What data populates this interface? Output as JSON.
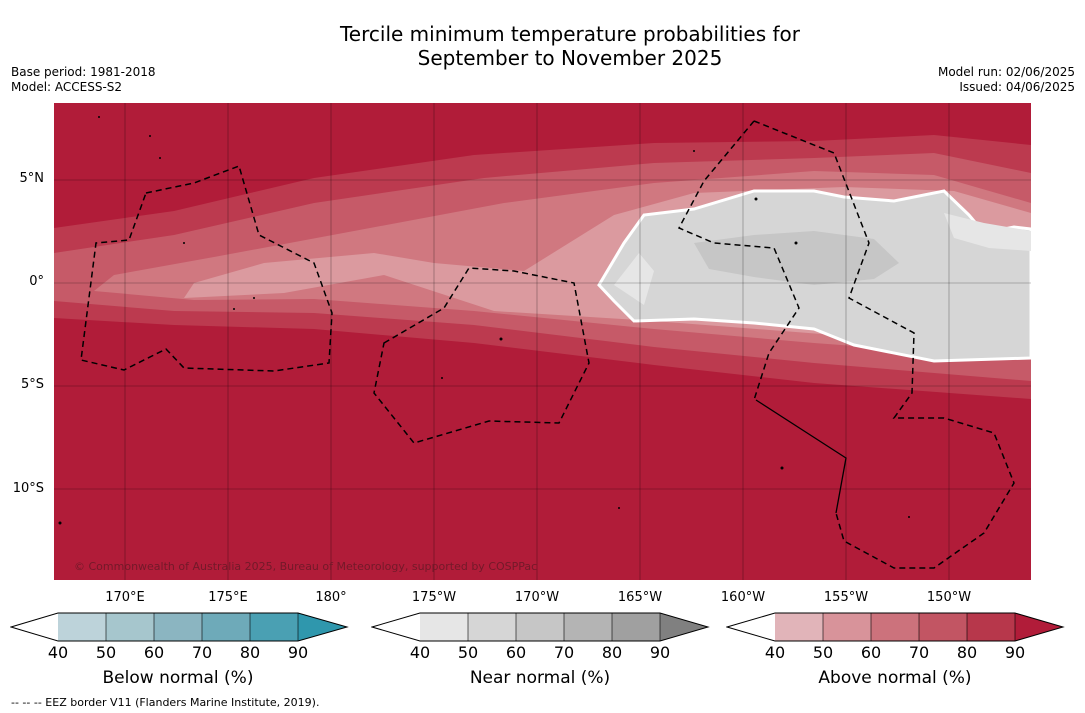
{
  "title": {
    "line1": "Tercile minimum temperature probabilities for",
    "line2": "September to November 2025"
  },
  "meta": {
    "base_period": "Base period: 1981-2018",
    "model": "Model: ACCESS-S2",
    "model_run": "Model run: 02/06/2025",
    "issued": "Issued: 04/06/2025"
  },
  "map": {
    "copyright": "© Commonwealth of Australia 2025, Bureau of Meteorology, supported by COSPPac",
    "lat_labels": [
      "5°N",
      "0°",
      "5°S",
      "10°S"
    ],
    "lon_labels": [
      "170°E",
      "175°E",
      "180°",
      "175°W",
      "170°W",
      "165°W",
      "160°W",
      "155°W",
      "150°W"
    ],
    "dominant_category": "Above normal",
    "near_normal_region": "central-east equatorial band",
    "colors": {
      "above_90": "#b11c39",
      "above_80": "#bc3a4f",
      "above_70": "#c65a68",
      "above_60": "#d07880",
      "above_50": "#db9a9f",
      "near_50": "#d6d6d6",
      "near_60": "#c6c6c6",
      "near_40": "#e6e6e6"
    }
  },
  "legends": [
    {
      "title": "Below normal (%)",
      "ticks": [
        "40",
        "50",
        "60",
        "70",
        "80",
        "90"
      ],
      "colors": [
        "#ffffff",
        "#bdd3da",
        "#a6c6cd",
        "#8bb5c1",
        "#6eaab9",
        "#4aa0b3",
        "#2f97ad"
      ]
    },
    {
      "title": "Near normal (%)",
      "ticks": [
        "40",
        "50",
        "60",
        "70",
        "80",
        "90"
      ],
      "colors": [
        "#ffffff",
        "#e6e6e6",
        "#d6d6d6",
        "#c6c6c6",
        "#b4b4b4",
        "#a0a0a0",
        "#808080"
      ]
    },
    {
      "title": "Above normal (%)",
      "ticks": [
        "40",
        "50",
        "60",
        "70",
        "80",
        "90"
      ],
      "colors": [
        "#ffffff",
        "#e1b4b9",
        "#d8939a",
        "#cc727c",
        "#c25563",
        "#b7374b",
        "#b11c39"
      ]
    }
  ],
  "footnote": "--  --  -- EEZ border V11 (Flanders Marine Institute, 2019)."
}
